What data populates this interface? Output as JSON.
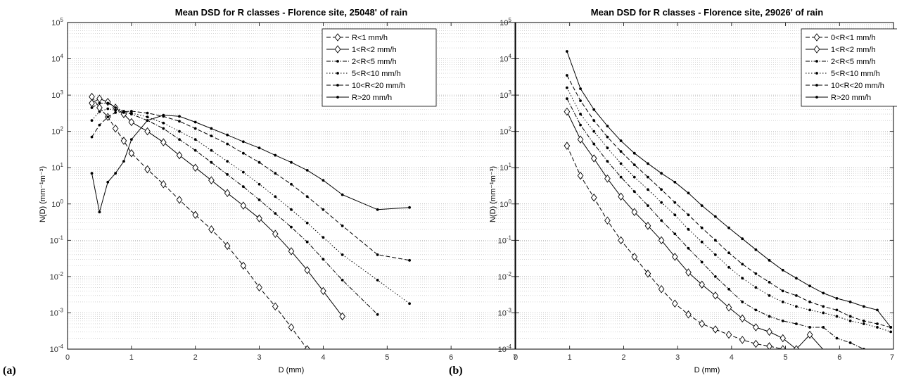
{
  "chart_data": [
    {
      "type": "line",
      "panel_label": "(a)",
      "title": "Mean DSD for R classes - Florence site, 25048' of rain",
      "xlabel": "D (mm)",
      "ylabel": "N(D) (mm⁻¹m⁻³)",
      "xlim": [
        0,
        7
      ],
      "ylim": [
        0.0001,
        100000
      ],
      "yscale": "log",
      "grid": true,
      "legend_position": "top-right",
      "x_ticks": [
        "0",
        "1",
        "2",
        "3",
        "4",
        "5",
        "6",
        "7"
      ],
      "series": [
        {
          "name": "R<1 mm/h",
          "style": "dashed",
          "marker": "diamond",
          "x": [
            0.38,
            0.5,
            0.63,
            0.75,
            0.88,
            1.0,
            1.25,
            1.5,
            1.75,
            2.0,
            2.25,
            2.5,
            2.75,
            3.0,
            3.25,
            3.5,
            3.75
          ],
          "y": [
            900,
            450,
            250,
            120,
            55,
            25,
            9,
            3.5,
            1.3,
            0.5,
            0.2,
            0.07,
            0.02,
            0.005,
            0.0015,
            0.0004,
            0.0001
          ]
        },
        {
          "name": "1<R<2 mm/h",
          "style": "solid",
          "marker": "diamond",
          "x": [
            0.38,
            0.5,
            0.63,
            0.75,
            0.88,
            1.0,
            1.25,
            1.5,
            1.75,
            2.0,
            2.25,
            2.5,
            2.75,
            3.0,
            3.25,
            3.5,
            3.75,
            4.0,
            4.3
          ],
          "y": [
            600,
            800,
            650,
            450,
            300,
            180,
            100,
            50,
            22,
            10,
            4.5,
            2,
            0.9,
            0.4,
            0.15,
            0.05,
            0.015,
            0.004,
            0.0008
          ]
        },
        {
          "name": "2<R<5 mm/h",
          "style": "dashdot",
          "marker": "dot",
          "x": [
            0.38,
            0.5,
            0.63,
            0.75,
            0.88,
            1.0,
            1.25,
            1.5,
            1.75,
            2.0,
            2.25,
            2.5,
            2.75,
            3.0,
            3.25,
            3.5,
            3.75,
            4.0,
            4.3,
            4.85
          ],
          "y": [
            450,
            600,
            600,
            450,
            360,
            300,
            200,
            120,
            60,
            30,
            14,
            6.5,
            3,
            1.3,
            0.55,
            0.23,
            0.09,
            0.03,
            0.008,
            0.0009
          ]
        },
        {
          "name": "5<R<10 mm/h",
          "style": "dotted",
          "marker": "dot",
          "x": [
            0.38,
            0.5,
            0.63,
            0.75,
            0.88,
            1.0,
            1.25,
            1.5,
            1.75,
            2.0,
            2.25,
            2.5,
            2.75,
            3.0,
            3.25,
            3.5,
            3.75,
            4.0,
            4.3,
            4.85,
            5.35
          ],
          "y": [
            200,
            350,
            420,
            380,
            330,
            320,
            250,
            170,
            100,
            60,
            30,
            15,
            7.5,
            3.5,
            1.6,
            0.7,
            0.3,
            0.12,
            0.04,
            0.008,
            0.0018
          ]
        },
        {
          "name": "10<R<20 mm/h",
          "style": "dashed",
          "marker": "dot",
          "x": [
            0.38,
            0.5,
            0.63,
            0.75,
            0.88,
            1.0,
            1.25,
            1.5,
            1.75,
            2.0,
            2.25,
            2.5,
            2.75,
            3.0,
            3.25,
            3.5,
            3.75,
            4.0,
            4.3,
            4.85,
            5.35
          ],
          "y": [
            70,
            150,
            250,
            330,
            350,
            360,
            320,
            260,
            190,
            120,
            75,
            45,
            25,
            14,
            7,
            3.5,
            1.6,
            0.7,
            0.25,
            0.04,
            0.028
          ]
        },
        {
          "name": "R>20 mm/h",
          "style": "solid",
          "marker": "dot",
          "x": [
            0.38,
            0.5,
            0.63,
            0.75,
            0.88,
            1.0,
            1.25,
            1.5,
            1.75,
            2.0,
            2.25,
            2.5,
            2.75,
            3.0,
            3.25,
            3.5,
            3.75,
            4.0,
            4.3,
            4.85,
            5.35
          ],
          "y": [
            7,
            0.6,
            4,
            7,
            15,
            60,
            200,
            280,
            260,
            180,
            120,
            80,
            52,
            35,
            22,
            14,
            8.5,
            4.5,
            1.8,
            0.7,
            0.8
          ]
        }
      ]
    },
    {
      "type": "line",
      "panel_label": "(b)",
      "title": "Mean DSD for R classes - Florence site, 29026' of rain",
      "xlabel": "D (mm)",
      "ylabel": "N(D) (mm⁻¹m⁻³)",
      "xlim": [
        0,
        7
      ],
      "ylim": [
        0.0001,
        100000
      ],
      "yscale": "log",
      "grid": true,
      "legend_position": "top-right",
      "x_ticks": [
        "0",
        "1",
        "2",
        "3",
        "4",
        "5",
        "6",
        "7"
      ],
      "series": [
        {
          "name": "0<R<1 mm/h",
          "style": "dashed",
          "marker": "diamond",
          "x": [
            0.95,
            1.2,
            1.45,
            1.7,
            1.95,
            2.2,
            2.45,
            2.7,
            2.95,
            3.2,
            3.45,
            3.7,
            3.95,
            4.2,
            4.45,
            4.7,
            4.95,
            5.2
          ],
          "y": [
            40,
            6,
            1.5,
            0.35,
            0.1,
            0.035,
            0.012,
            0.0045,
            0.0018,
            0.0009,
            0.0005,
            0.00035,
            0.00025,
            0.00018,
            0.00014,
            0.00012,
            0.0001,
            8e-05
          ]
        },
        {
          "name": "1<R<2 mm/h",
          "style": "solid",
          "marker": "diamond",
          "x": [
            0.95,
            1.2,
            1.45,
            1.7,
            1.95,
            2.2,
            2.45,
            2.7,
            2.95,
            3.2,
            3.45,
            3.7,
            3.95,
            4.2,
            4.45,
            4.7,
            4.95,
            5.2,
            5.45,
            5.75
          ],
          "y": [
            350,
            60,
            18,
            5,
            1.6,
            0.6,
            0.25,
            0.1,
            0.035,
            0.013,
            0.006,
            0.003,
            0.0014,
            0.0007,
            0.0004,
            0.0003,
            0.0002,
            0.0001,
            0.00025,
            8e-05
          ]
        },
        {
          "name": "2<R<5 mm/h",
          "style": "dashdot",
          "marker": "dot",
          "x": [
            0.95,
            1.2,
            1.45,
            1.7,
            1.95,
            2.2,
            2.45,
            2.7,
            2.95,
            3.2,
            3.45,
            3.7,
            3.95,
            4.2,
            4.45,
            4.7,
            4.95,
            5.2,
            5.45,
            5.7,
            5.95,
            6.2,
            6.45
          ],
          "y": [
            800,
            150,
            45,
            15,
            5.5,
            2.2,
            0.9,
            0.35,
            0.15,
            0.06,
            0.025,
            0.01,
            0.0045,
            0.002,
            0.0012,
            0.0008,
            0.0006,
            0.0005,
            0.0004,
            0.0004,
            0.0002,
            0.00015,
            0.0001
          ]
        },
        {
          "name": "5<R<10 mm/h",
          "style": "dotted",
          "marker": "dot",
          "x": [
            0.95,
            1.2,
            1.45,
            1.7,
            1.95,
            2.2,
            2.45,
            2.7,
            2.95,
            3.2,
            3.45,
            3.7,
            3.95,
            4.2,
            4.45,
            4.7,
            4.95,
            5.2,
            5.45,
            5.7,
            5.95,
            6.2,
            6.45,
            6.7,
            6.95
          ],
          "y": [
            1600,
            300,
            100,
            35,
            13,
            5.5,
            2.5,
            1.1,
            0.5,
            0.2,
            0.09,
            0.04,
            0.018,
            0.009,
            0.005,
            0.003,
            0.002,
            0.0015,
            0.0012,
            0.001,
            0.0008,
            0.0006,
            0.0005,
            0.0004,
            0.0003
          ]
        },
        {
          "name": "10<R<20 mm/h",
          "style": "dashed",
          "marker": "dot",
          "x": [
            0.95,
            1.2,
            1.45,
            1.7,
            1.95,
            2.2,
            2.45,
            2.7,
            2.95,
            3.2,
            3.45,
            3.7,
            3.95,
            4.2,
            4.45,
            4.7,
            4.95,
            5.2,
            5.45,
            5.7,
            5.95,
            6.2,
            6.45,
            6.7,
            6.95
          ],
          "y": [
            3500,
            700,
            200,
            70,
            28,
            12,
            5.5,
            2.5,
            1.1,
            0.5,
            0.22,
            0.1,
            0.045,
            0.022,
            0.012,
            0.007,
            0.004,
            0.003,
            0.002,
            0.0015,
            0.0012,
            0.0008,
            0.0006,
            0.0005,
            0.0004
          ]
        },
        {
          "name": "R>20 mm/h",
          "style": "solid",
          "marker": "dot",
          "x": [
            0.95,
            1.2,
            1.45,
            1.7,
            1.95,
            2.2,
            2.45,
            2.7,
            2.95,
            3.2,
            3.45,
            3.7,
            3.95,
            4.2,
            4.45,
            4.7,
            4.95,
            5.2,
            5.45,
            5.7,
            5.95,
            6.2,
            6.45,
            6.7,
            6.95
          ],
          "y": [
            16000,
            1500,
            400,
            140,
            55,
            25,
            13,
            7,
            4,
            2,
            0.9,
            0.45,
            0.22,
            0.11,
            0.055,
            0.028,
            0.015,
            0.009,
            0.0055,
            0.0035,
            0.0025,
            0.002,
            0.0015,
            0.0012,
            0.0004
          ]
        }
      ]
    }
  ]
}
